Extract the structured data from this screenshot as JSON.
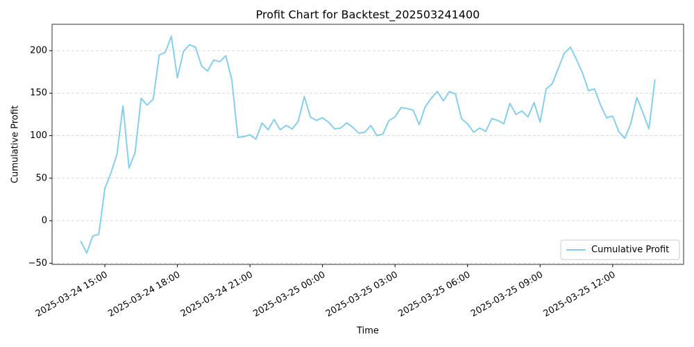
{
  "chart_data": {
    "type": "line",
    "title": "Profit Chart for Backtest_202503241400",
    "x_label": "Time",
    "y_label": "Cumulative Profit",
    "x": [
      "2025-03-24 14:00",
      "2025-03-24 14:15",
      "2025-03-24 14:30",
      "2025-03-24 14:45",
      "2025-03-24 15:00",
      "2025-03-24 15:15",
      "2025-03-24 15:30",
      "2025-03-24 15:45",
      "2025-03-24 16:00",
      "2025-03-24 16:15",
      "2025-03-24 16:30",
      "2025-03-24 16:45",
      "2025-03-24 17:00",
      "2025-03-24 17:15",
      "2025-03-24 17:30",
      "2025-03-24 17:45",
      "2025-03-24 18:00",
      "2025-03-24 18:15",
      "2025-03-24 18:30",
      "2025-03-24 18:45",
      "2025-03-24 19:00",
      "2025-03-24 19:15",
      "2025-03-24 19:30",
      "2025-03-24 19:45",
      "2025-03-24 20:00",
      "2025-03-24 20:15",
      "2025-03-24 20:30",
      "2025-03-24 20:45",
      "2025-03-24 21:00",
      "2025-03-24 21:15",
      "2025-03-24 21:30",
      "2025-03-24 21:45",
      "2025-03-24 22:00",
      "2025-03-24 22:15",
      "2025-03-24 22:30",
      "2025-03-24 22:45",
      "2025-03-24 23:00",
      "2025-03-24 23:15",
      "2025-03-24 23:30",
      "2025-03-24 23:45",
      "2025-03-25 00:00",
      "2025-03-25 00:15",
      "2025-03-25 00:30",
      "2025-03-25 00:45",
      "2025-03-25 01:00",
      "2025-03-25 01:15",
      "2025-03-25 01:30",
      "2025-03-25 01:45",
      "2025-03-25 02:00",
      "2025-03-25 02:15",
      "2025-03-25 02:30",
      "2025-03-25 02:45",
      "2025-03-25 03:00",
      "2025-03-25 03:15",
      "2025-03-25 03:30",
      "2025-03-25 03:45",
      "2025-03-25 04:00",
      "2025-03-25 04:15",
      "2025-03-25 04:30",
      "2025-03-25 04:45",
      "2025-03-25 05:00",
      "2025-03-25 05:15",
      "2025-03-25 05:30",
      "2025-03-25 05:45",
      "2025-03-25 06:00",
      "2025-03-25 06:15",
      "2025-03-25 06:30",
      "2025-03-25 06:45",
      "2025-03-25 07:00",
      "2025-03-25 07:15",
      "2025-03-25 07:30",
      "2025-03-25 07:45",
      "2025-03-25 08:00",
      "2025-03-25 08:15",
      "2025-03-25 08:30",
      "2025-03-25 08:45",
      "2025-03-25 09:00",
      "2025-03-25 09:15",
      "2025-03-25 09:30",
      "2025-03-25 09:45",
      "2025-03-25 10:00",
      "2025-03-25 10:15",
      "2025-03-25 10:30",
      "2025-03-25 10:45",
      "2025-03-25 11:00",
      "2025-03-25 11:15",
      "2025-03-25 11:30",
      "2025-03-25 11:45",
      "2025-03-25 12:00",
      "2025-03-25 12:15",
      "2025-03-25 12:30",
      "2025-03-25 12:45",
      "2025-03-25 13:00",
      "2025-03-25 13:15",
      "2025-03-25 13:30",
      "2025-03-25 13:45"
    ],
    "series": [
      {
        "name": "Cumulative Profit",
        "color": "#87ceeb",
        "values": [
          -24,
          -38,
          -18,
          -16,
          38,
          56,
          78,
          135,
          62,
          80,
          144,
          136,
          143,
          195,
          198,
          217,
          168,
          199,
          207,
          204,
          182,
          176,
          189,
          187,
          194,
          166,
          98,
          99,
          101,
          96,
          115,
          107,
          119,
          107,
          112,
          108,
          117,
          146,
          122,
          118,
          121,
          116,
          108,
          109,
          115,
          110,
          103,
          104,
          112,
          100,
          102,
          118,
          122,
          133,
          132,
          130,
          113,
          134,
          144,
          152,
          141,
          152,
          149,
          120,
          114,
          104,
          109,
          105,
          120,
          118,
          114,
          138,
          125,
          129,
          122,
          139,
          116,
          155,
          161,
          179,
          197,
          204,
          190,
          174,
          153,
          155,
          136,
          121,
          123,
          105,
          97,
          114,
          145,
          127,
          108,
          166
        ]
      }
    ],
    "xlim": [
      "2025-03-24 12:49",
      "2025-03-25 14:56"
    ],
    "xticks": [
      "2025-03-24 15:00",
      "2025-03-24 18:00",
      "2025-03-24 21:00",
      "2025-03-25 00:00",
      "2025-03-25 03:00",
      "2025-03-25 06:00",
      "2025-03-25 09:00",
      "2025-03-25 12:00"
    ],
    "ylim": [
      -51.4,
      231
    ],
    "yticks": [
      {
        "value": -50,
        "label": "−50"
      },
      0,
      50,
      100,
      150,
      200
    ],
    "grid": "y",
    "legend": "lower right"
  }
}
